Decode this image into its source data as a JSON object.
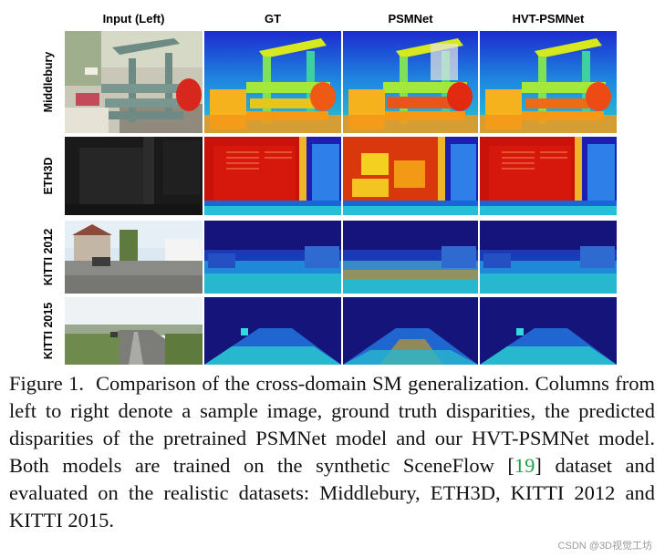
{
  "figure": {
    "column_headers": [
      "Input (Left)",
      "GT",
      "PSMNet",
      "HVT-PSMNet"
    ],
    "row_labels": [
      "Middlebury",
      "ETH3D",
      "KITTI 2012",
      "KITTI 2015"
    ],
    "colors": {
      "disparity_far": "#1c1fb0",
      "disparity_mid": "#22c7c7",
      "disparity_near": "#e83a12",
      "citation": "#1aa34a"
    }
  },
  "caption": {
    "lead": "Figure 1.",
    "text_before_cite": "Comparison of the cross-domain SM generalization. Columns from left to right denote a sample image, ground truth disparities, the predicted disparities of the pretrained PSMNet model and our HVT-PSMNet model. Both models are trained on the synthetic SceneFlow [",
    "cite": "19",
    "text_after_cite": "] dataset and evaluated on the realistic datasets: Middlebury, ETH3D, KITTI 2012 and KITTI 2015."
  },
  "watermark": "CSDN @3D视觉工坊"
}
